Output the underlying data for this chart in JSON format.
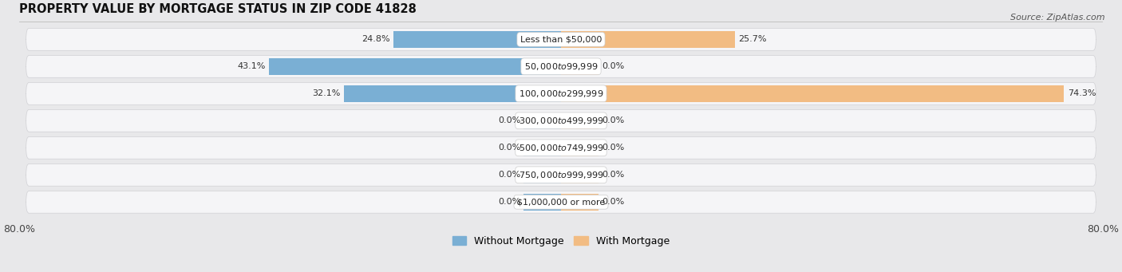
{
  "title": "PROPERTY VALUE BY MORTGAGE STATUS IN ZIP CODE 41828",
  "source": "Source: ZipAtlas.com",
  "categories": [
    "Less than $50,000",
    "$50,000 to $99,999",
    "$100,000 to $299,999",
    "$300,000 to $499,999",
    "$500,000 to $749,999",
    "$750,000 to $999,999",
    "$1,000,000 or more"
  ],
  "without_mortgage": [
    24.8,
    43.1,
    32.1,
    0.0,
    0.0,
    0.0,
    0.0
  ],
  "with_mortgage": [
    25.7,
    0.0,
    74.3,
    0.0,
    0.0,
    0.0,
    0.0
  ],
  "without_mortgage_color": "#7aafd4",
  "with_mortgage_color": "#f2bc83",
  "bar_height": 0.62,
  "stub_size": 5.5,
  "xlim": [
    -80,
    80
  ],
  "background_color": "#e8e8ea",
  "row_bg_color": "#f5f5f7",
  "title_fontsize": 10.5,
  "label_fontsize": 8.0,
  "cat_fontsize": 8.0,
  "axis_label_fontsize": 9,
  "legend_fontsize": 9,
  "source_fontsize": 8
}
